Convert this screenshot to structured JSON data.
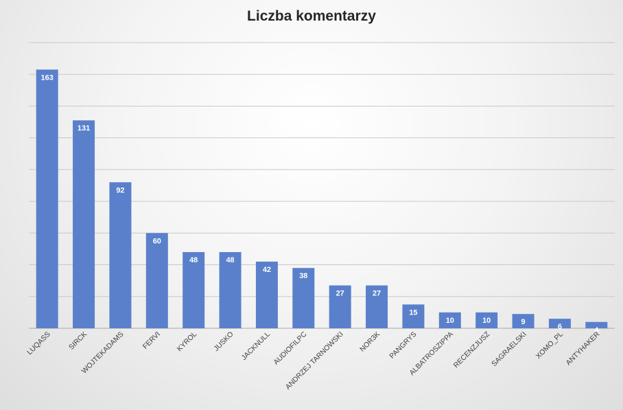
{
  "chart_data": {
    "type": "bar",
    "title": "Liczba komentarzy",
    "xlabel": "",
    "ylabel": "",
    "ylim": [
      0,
      180
    ],
    "grid": true,
    "categories": [
      "LUQASS",
      "SIRCK",
      "WOJTEKADAMS",
      "FERVI",
      "KYROL",
      "JUSKO",
      "JACKNULL",
      "AUDIOFILPC",
      "ANDRZEJ TARNOWSKI",
      "NOR3K",
      "PANGRYS",
      "ALBATROSZIPPA",
      "RECENZJUSZ",
      "SAGRAELSKI",
      "XOMO_PL",
      "ANTYHAKER"
    ],
    "values": [
      163,
      131,
      92,
      60,
      48,
      48,
      42,
      38,
      27,
      27,
      15,
      10,
      10,
      9,
      6,
      4
    ],
    "bar_color": "#5a80cc"
  }
}
